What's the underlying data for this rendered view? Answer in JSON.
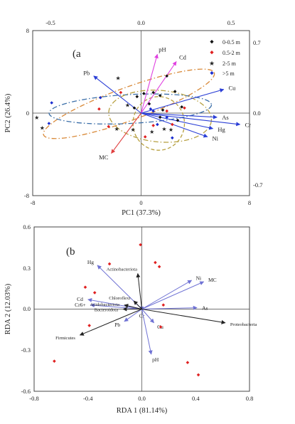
{
  "chart_data": [
    {
      "type": "scatter",
      "title": "",
      "panel_label": "(a",
      "xlabel": "PC1 (37.3%)",
      "ylabel": "PC2 (26.4%)",
      "xlim": [
        -8,
        8
      ],
      "ylim": [
        -8,
        8
      ],
      "x_ticks": [
        "-8",
        "0",
        "8"
      ],
      "y_ticks": [
        "8",
        "0",
        "-8"
      ],
      "top_ticks": [
        "-0.5",
        "0.0",
        "0.5"
      ],
      "right_ticks": [
        "0.7",
        "0.0",
        "-0.7"
      ],
      "grid": false,
      "legend_position": "top-right",
      "series": [
        {
          "name": "0-0.5 m",
          "color": "#111111",
          "marker": "diamond",
          "points": [
            [
              -0.3,
              1.6
            ],
            [
              0.2,
              1.9
            ],
            [
              0.9,
              2.0
            ],
            [
              1.4,
              1.7
            ],
            [
              1.9,
              3.6
            ],
            [
              2.5,
              2.1
            ],
            [
              3.0,
              0.6
            ],
            [
              1.6,
              0.3
            ],
            [
              2.7,
              -0.7
            ],
            [
              0.6,
              0.9
            ],
            [
              1.4,
              -0.4
            ],
            [
              -0.5,
              0.5
            ]
          ]
        },
        {
          "name": "0.5-2 m",
          "color": "#e02020",
          "marker": "diamond",
          "points": [
            [
              -1.5,
              2.0
            ],
            [
              -3.1,
              0.4
            ],
            [
              1.9,
              0.2
            ],
            [
              3.2,
              0.5
            ],
            [
              -2.4,
              -1.3
            ],
            [
              0.9,
              -1.2
            ],
            [
              2.3,
              -1.1
            ],
            [
              0.3,
              -2.3
            ]
          ]
        },
        {
          "name": "2-5 m",
          "color": "#22cc22",
          "marker": "star",
          "points": [
            [
              -1.7,
              3.4
            ],
            [
              -7.7,
              -0.4
            ],
            [
              -1.0,
              0.8
            ],
            [
              -7.3,
              -1.4
            ],
            [
              -1.8,
              -1.5
            ],
            [
              0.8,
              -1.8
            ],
            [
              1.7,
              -1.5
            ],
            [
              2.2,
              -1.6
            ],
            [
              -0.6,
              -1.6
            ]
          ]
        },
        {
          "name": ">5 m",
          "color": "#1a2dd0",
          "marker": "diamond",
          "points": [
            [
              -6.6,
              1.0
            ],
            [
              -3.0,
              1.5
            ],
            [
              -6.8,
              -1.0
            ],
            [
              1.2,
              -1.1
            ],
            [
              1.9,
              -0.4
            ],
            [
              2.3,
              -2.4
            ],
            [
              0.7,
              0.4
            ],
            [
              0.9,
              0.2
            ]
          ]
        }
      ],
      "arrows": [
        {
          "label": "pH",
          "color": "#e040e0",
          "x": 1.2,
          "y": 5.7
        },
        {
          "label": "Cd",
          "color": "#e040e0",
          "x": 2.6,
          "y": 5.0
        },
        {
          "label": "Pb",
          "color": "#2b3fd6",
          "x": -3.5,
          "y": 3.6
        },
        {
          "label": "Cu",
          "color": "#2b3fd6",
          "x": 6.1,
          "y": 2.3
        },
        {
          "label": "As",
          "color": "#2b3fd6",
          "x": 5.6,
          "y": -0.4
        },
        {
          "label": "Cr",
          "color": "#2b3fd6",
          "x": 7.3,
          "y": -1.1
        },
        {
          "label": "Hg",
          "color": "#2b3fd6",
          "x": 5.3,
          "y": -1.5
        },
        {
          "label": "Ni",
          "color": "#2b3fd6",
          "x": 4.9,
          "y": -2.3
        },
        {
          "label": "MC",
          "color": "#e04040",
          "x": -2.2,
          "y": -3.9
        }
      ],
      "ellipses": [
        {
          "color": "#d98a3a",
          "style": "dash-dot",
          "cx": -0.9,
          "cy": 0.9,
          "rx": 6.7,
          "ry": 1.6,
          "angle_deg": 20
        },
        {
          "color": "#3a6ea8",
          "style": "dash-dot",
          "cx": -0.8,
          "cy": 0.4,
          "rx": 6.0,
          "ry": 1.4,
          "angle_deg": 3
        },
        {
          "color": "#b8a142",
          "style": "dash-dot",
          "cx": 1.4,
          "cy": -0.3,
          "rx": 3.8,
          "ry": 2.5,
          "angle_deg": -5
        },
        {
          "color": "#b8a142",
          "style": "dashed",
          "cx": 1.3,
          "cy": -1.0,
          "rx": 1.9,
          "ry": 2.6,
          "angle_deg": 0
        }
      ]
    },
    {
      "type": "scatter",
      "title": "",
      "panel_label": "(b",
      "xlabel": "RDA 1 (81.14%)",
      "ylabel": "RDA 2 (12.03%)",
      "xlim": [
        -0.8,
        0.8
      ],
      "ylim": [
        -0.6,
        0.6
      ],
      "x_ticks": [
        "-0.8",
        "-0.4",
        "0.0",
        "0.4",
        "0.8"
      ],
      "y_ticks": [
        "0.6",
        "0.3",
        "0.0",
        "-0.3",
        "-0.6"
      ],
      "grid": false,
      "samples": {
        "color": "#e02020",
        "points": [
          [
            -0.01,
            0.47
          ],
          [
            0.1,
            0.34
          ],
          [
            0.13,
            0.31
          ],
          [
            -0.24,
            0.33
          ],
          [
            -0.42,
            0.16
          ],
          [
            -0.35,
            0.12
          ],
          [
            0.16,
            0.03
          ],
          [
            0.14,
            -0.13
          ],
          [
            -0.39,
            -0.12
          ],
          [
            -0.65,
            -0.38
          ],
          [
            0.34,
            -0.39
          ],
          [
            0.42,
            -0.48
          ]
        ]
      },
      "arrows": [
        {
          "label": "Hg",
          "kind": "env",
          "color": "#6f72d4",
          "x": -0.33,
          "y": 0.32
        },
        {
          "label": "Cd",
          "kind": "env",
          "color": "#6f72d4",
          "x": -0.4,
          "y": 0.07
        },
        {
          "label": "Cr6+",
          "kind": "env",
          "color": "#6f72d4",
          "x": -0.38,
          "y": 0.03
        },
        {
          "label": "Pb",
          "kind": "env",
          "color": "#6f72d4",
          "x": -0.13,
          "y": -0.09
        },
        {
          "label": "Cr",
          "kind": "env",
          "color": "#6f72d4",
          "x": 0.0,
          "y": -0.01
        },
        {
          "label": "Cu",
          "kind": "env",
          "color": "#6f72d4",
          "x": 0.09,
          "y": -0.1
        },
        {
          "label": "pH",
          "kind": "env",
          "color": "#6f72d4",
          "x": 0.07,
          "y": -0.33
        },
        {
          "label": "Ni",
          "kind": "env",
          "color": "#6f72d4",
          "x": 0.37,
          "y": 0.21
        },
        {
          "label": "MC",
          "kind": "env",
          "color": "#6f72d4",
          "x": 0.46,
          "y": 0.2
        },
        {
          "label": "As",
          "kind": "env",
          "color": "#6f72d4",
          "x": 0.41,
          "y": 0.01
        },
        {
          "label": "Actinobacteriota",
          "kind": "taxa",
          "color": "#222222",
          "x": -0.03,
          "y": 0.26
        },
        {
          "label": "Chloroflexi",
          "kind": "taxa",
          "color": "#222222",
          "x": -0.06,
          "y": 0.06
        },
        {
          "label": "Acidobacteriota",
          "kind": "taxa",
          "color": "#222222",
          "x": -0.13,
          "y": 0.03
        },
        {
          "label": "Bacteroidota",
          "kind": "taxa",
          "color": "#222222",
          "x": -0.14,
          "y": 0.0
        },
        {
          "label": "Firmicutes",
          "kind": "taxa",
          "color": "#222222",
          "x": -0.46,
          "y": -0.19
        },
        {
          "label": "Proteobacteria",
          "kind": "taxa",
          "color": "#222222",
          "x": 0.62,
          "y": -0.1
        }
      ]
    }
  ]
}
